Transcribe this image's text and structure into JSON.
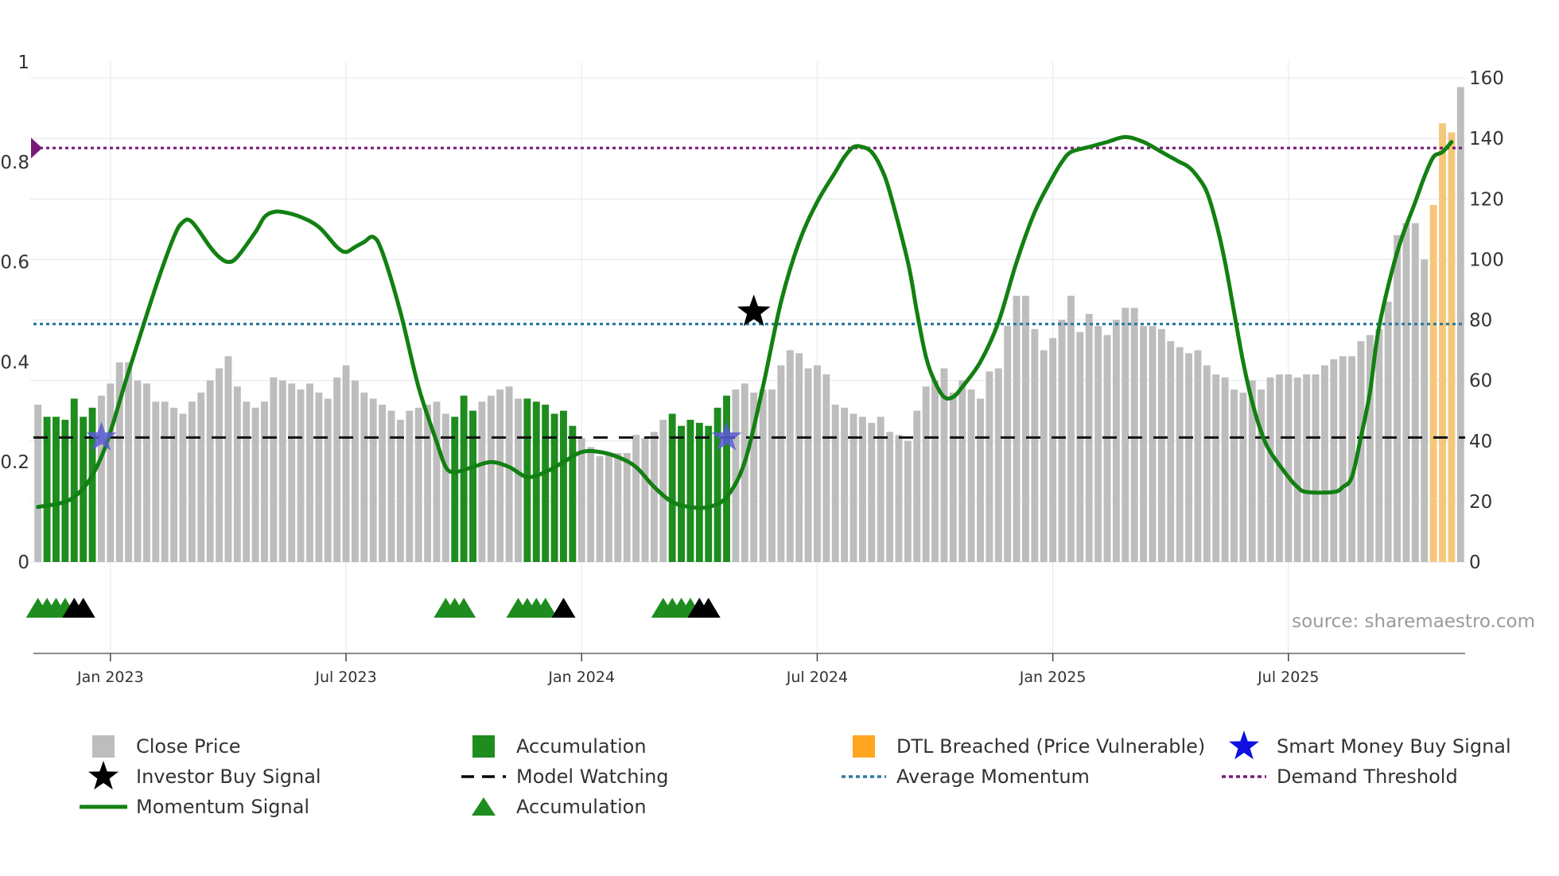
{
  "chart_data": {
    "type": "bar+line",
    "title": "",
    "source": "source: sharemaestro.com",
    "colors": {
      "close": "#bdbdbd",
      "accumulation": "#1e8c1e",
      "dtl": "#f5c77a",
      "momentum": "#128012",
      "avg_momentum": "#2c7aa0",
      "demand": "#7a1a7a",
      "watch": "#111111",
      "smart_star": "#5a5ad6",
      "investor_star": "#000000",
      "legend_dtl": "#ffa620",
      "legend_smart": "#1010e0",
      "legend_accum": "#1e8c1e",
      "grid": "#e6eaf2"
    },
    "left_axis": {
      "ylim": [
        0,
        1
      ],
      "ticks": [
        "0",
        "0.2",
        "0.4",
        "0.6",
        "0.8",
        "1"
      ]
    },
    "right_axis": {
      "ylim": [
        0,
        160
      ],
      "ticks": [
        "0",
        "20",
        "40",
        "60",
        "80",
        "100",
        "120",
        "140",
        "160"
      ]
    },
    "x_ticks": [
      "Jan 2023",
      "Jul 2023",
      "Jan 2024",
      "Jul 2024",
      "Jan 2025",
      "Jul 2025"
    ],
    "x_tick_week_index": [
      8,
      34,
      60,
      86,
      112,
      138
    ],
    "close_price": [
      52,
      48,
      48,
      47,
      54,
      48,
      51,
      55,
      59,
      66,
      66,
      60,
      59,
      53,
      53,
      51,
      49,
      53,
      56,
      60,
      64,
      68,
      58,
      53,
      51,
      53,
      61,
      60,
      59,
      57,
      59,
      56,
      54,
      61,
      65,
      60,
      56,
      54,
      52,
      50,
      47,
      50,
      51,
      52,
      53,
      49,
      48,
      55,
      50,
      53,
      55,
      57,
      58,
      54,
      54,
      53,
      52,
      49,
      50,
      45,
      41,
      38,
      35,
      36,
      36,
      36,
      42,
      41,
      43,
      47,
      49,
      45,
      47,
      46,
      45,
      51,
      55,
      57,
      59,
      56,
      57,
      57,
      65,
      70,
      69,
      64,
      65,
      62,
      52,
      51,
      49,
      48,
      46,
      48,
      43,
      42,
      40,
      50,
      58,
      60,
      64,
      56,
      60,
      57,
      54,
      63,
      64,
      78,
      88,
      88,
      77,
      70,
      74,
      80,
      88,
      76,
      82,
      78,
      75,
      80,
      84,
      84,
      78,
      78,
      77,
      73,
      71,
      69,
      70,
      65,
      62,
      61,
      57,
      56,
      60,
      57,
      61,
      62,
      62,
      61,
      62,
      62,
      65,
      67,
      68,
      68,
      73,
      75,
      77,
      86,
      108,
      112,
      112,
      100,
      118,
      145,
      142,
      157
    ],
    "accumulation_weeks": [
      1,
      2,
      3,
      4,
      5,
      6,
      46,
      47,
      48,
      54,
      55,
      56,
      57,
      58,
      59,
      70,
      71,
      72,
      73,
      74,
      75,
      76
    ],
    "dtl_weeks": [
      154,
      155,
      156
    ],
    "momentum": [
      [
        0,
        0.11
      ],
      [
        4,
        0.13
      ],
      [
        7,
        0.21
      ],
      [
        10,
        0.38
      ],
      [
        13,
        0.55
      ],
      [
        15,
        0.65
      ],
      [
        16,
        0.68
      ],
      [
        17,
        0.68
      ],
      [
        19,
        0.63
      ],
      [
        20,
        0.61
      ],
      [
        21,
        0.6
      ],
      [
        22,
        0.61
      ],
      [
        24,
        0.66
      ],
      [
        25,
        0.69
      ],
      [
        26,
        0.7
      ],
      [
        27,
        0.7
      ],
      [
        29,
        0.69
      ],
      [
        31,
        0.67
      ],
      [
        33,
        0.63
      ],
      [
        34,
        0.62
      ],
      [
        35,
        0.63
      ],
      [
        36,
        0.64
      ],
      [
        37,
        0.65
      ],
      [
        38,
        0.62
      ],
      [
        40,
        0.5
      ],
      [
        42,
        0.35
      ],
      [
        44,
        0.24
      ],
      [
        45,
        0.19
      ],
      [
        46,
        0.18
      ],
      [
        48,
        0.19
      ],
      [
        50,
        0.2
      ],
      [
        52,
        0.19
      ],
      [
        54,
        0.17
      ],
      [
        56,
        0.18
      ],
      [
        58,
        0.2
      ],
      [
        60,
        0.22
      ],
      [
        62,
        0.22
      ],
      [
        64,
        0.21
      ],
      [
        66,
        0.19
      ],
      [
        68,
        0.15
      ],
      [
        70,
        0.12
      ],
      [
        72,
        0.11
      ],
      [
        74,
        0.11
      ],
      [
        76,
        0.13
      ],
      [
        78,
        0.2
      ],
      [
        80,
        0.35
      ],
      [
        82,
        0.52
      ],
      [
        84,
        0.64
      ],
      [
        86,
        0.72
      ],
      [
        88,
        0.78
      ],
      [
        89,
        0.81
      ],
      [
        90,
        0.83
      ],
      [
        91,
        0.83
      ],
      [
        92,
        0.82
      ],
      [
        93,
        0.79
      ],
      [
        94,
        0.74
      ],
      [
        96,
        0.6
      ],
      [
        97,
        0.5
      ],
      [
        98,
        0.41
      ],
      [
        99,
        0.36
      ],
      [
        100,
        0.33
      ],
      [
        101,
        0.33
      ],
      [
        102,
        0.35
      ],
      [
        104,
        0.4
      ],
      [
        106,
        0.48
      ],
      [
        108,
        0.6
      ],
      [
        110,
        0.7
      ],
      [
        112,
        0.77
      ],
      [
        113,
        0.8
      ],
      [
        114,
        0.82
      ],
      [
        116,
        0.83
      ],
      [
        118,
        0.84
      ],
      [
        120,
        0.85
      ],
      [
        122,
        0.84
      ],
      [
        124,
        0.82
      ],
      [
        126,
        0.8
      ],
      [
        127,
        0.79
      ],
      [
        128,
        0.77
      ],
      [
        129,
        0.74
      ],
      [
        130,
        0.68
      ],
      [
        131,
        0.6
      ],
      [
        132,
        0.5
      ],
      [
        133,
        0.4
      ],
      [
        134,
        0.32
      ],
      [
        135,
        0.26
      ],
      [
        136,
        0.22
      ],
      [
        138,
        0.17
      ],
      [
        139,
        0.15
      ],
      [
        140,
        0.14
      ],
      [
        143,
        0.14
      ],
      [
        144,
        0.15
      ],
      [
        145,
        0.17
      ],
      [
        146,
        0.25
      ],
      [
        147,
        0.34
      ],
      [
        148,
        0.47
      ],
      [
        150,
        0.62
      ],
      [
        152,
        0.72
      ],
      [
        153,
        0.77
      ],
      [
        154,
        0.81
      ],
      [
        155,
        0.82
      ],
      [
        156,
        0.84
      ]
    ],
    "avg_momentum": 0.476,
    "demand_threshold": 0.828,
    "model_watching_level": 0.249,
    "smart_money_buy_weeks": [
      7,
      76
    ],
    "investor_buy_weeks": [
      79
    ],
    "investor_buy_level": 0.5,
    "accumulation_triangles_green": [
      0,
      1,
      2,
      3,
      45,
      46,
      47,
      53,
      54,
      55,
      56,
      69,
      70,
      71,
      72
    ],
    "accumulation_triangles_black": [
      4,
      5,
      58,
      73,
      74
    ],
    "legend": [
      {
        "key": "close",
        "label": "Close Price"
      },
      {
        "key": "accum_bar",
        "label": "Accumulation"
      },
      {
        "key": "dtl",
        "label": "DTL Breached (Price Vulnerable)"
      },
      {
        "key": "smart",
        "label": "Smart Money Buy Signal"
      },
      {
        "key": "investor",
        "label": "Investor Buy Signal"
      },
      {
        "key": "watch",
        "label": "Model Watching"
      },
      {
        "key": "avg",
        "label": "Average Momentum"
      },
      {
        "key": "demand",
        "label": "Demand Threshold"
      },
      {
        "key": "momentum",
        "label": "Momentum Signal"
      },
      {
        "key": "accum_tri",
        "label": "Accumulation"
      }
    ]
  }
}
